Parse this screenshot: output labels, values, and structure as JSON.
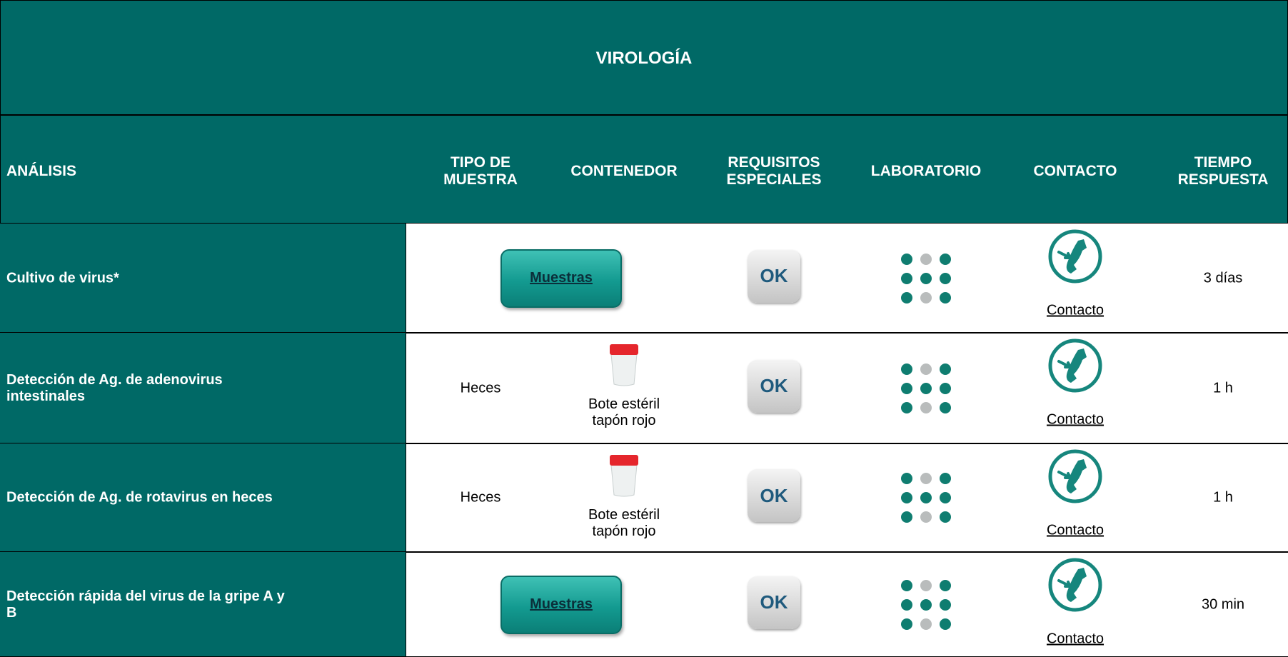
{
  "title": "VIROLOGÍA",
  "headers": [
    [
      "ANÁLISIS"
    ],
    [
      "TIPO DE",
      "MUESTRA"
    ],
    [
      "CONTENEDOR"
    ],
    [
      "REQUISITOS",
      "ESPECIALES"
    ],
    [
      "LABORATORIO"
    ],
    [
      "CONTACTO"
    ],
    [
      "TIEMPO",
      "RESPUESTA"
    ]
  ],
  "rows": [
    {
      "analysis": [
        "Cultivo de virus*"
      ],
      "sample_button": "Muestras",
      "requirements": "OK",
      "contact": "Contacto",
      "time": "3 días"
    },
    {
      "analysis": [
        "Detección de Ag. de adenovirus",
        "intestinales"
      ],
      "sample": "Heces",
      "container": [
        "Bote estéril",
        "tapón rojo"
      ],
      "requirements": "OK",
      "contact": "Contacto",
      "time": "1 h"
    },
    {
      "analysis": [
        "Detección de Ag. de rotavirus en heces"
      ],
      "sample": "Heces",
      "container": [
        "Bote estéril",
        "tapón rojo"
      ],
      "requirements": "OK",
      "contact": "Contacto",
      "time": "1 h"
    },
    {
      "analysis": [
        "Detección rápida del virus de la gripe A y",
        "B"
      ],
      "sample_button": "Muestras",
      "requirements": "OK",
      "contact": "Contacto",
      "time": "30 min"
    }
  ]
}
